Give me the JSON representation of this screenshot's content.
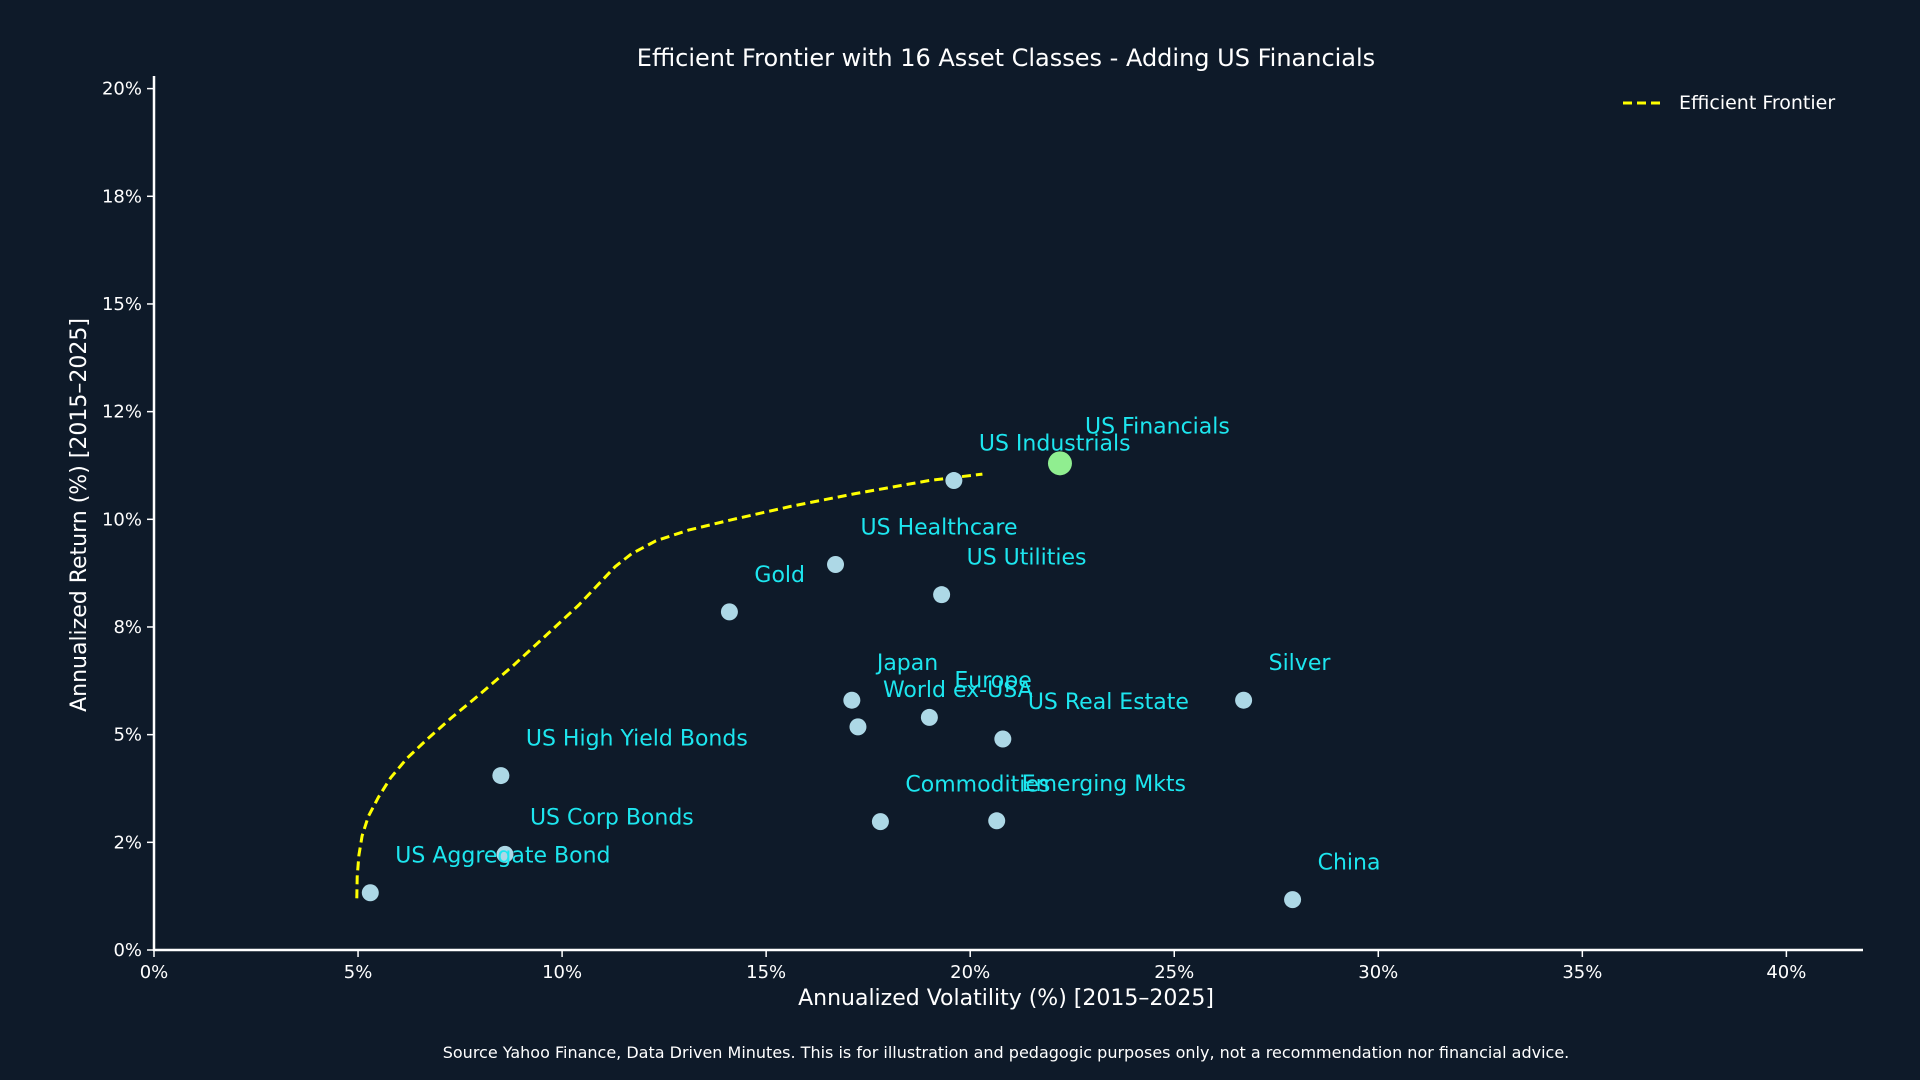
{
  "chart_data": {
    "type": "scatter",
    "title": "Efficient Frontier with 16 Asset Classes - Adding US Financials",
    "xlabel": "Annualized Volatility (%) [2015–2025]",
    "ylabel": "Annualized Return (%) [2015–2025]",
    "xlim": [
      0,
      42
    ],
    "ylim": [
      0,
      20.2
    ],
    "x_ticks": [
      0,
      5,
      10,
      15,
      20,
      25,
      30,
      35,
      40
    ],
    "x_tick_labels": [
      "0%",
      "5%",
      "10%",
      "15%",
      "20%",
      "25%",
      "30%",
      "35%",
      "40%"
    ],
    "y_ticks": [
      0,
      2.5,
      5,
      7.5,
      10,
      12.5,
      15,
      17.5,
      20
    ],
    "y_tick_labels": [
      "0%",
      "2%",
      "5%",
      "8%",
      "10%",
      "12%",
      "15%",
      "18%",
      "20%"
    ],
    "grid": false,
    "legend": {
      "placement": "top-right",
      "entries": [
        "Efficient Frontier"
      ]
    },
    "colors": {
      "background": "#0e1a29",
      "point": "#add8e6",
      "highlight": "#90ee90",
      "label": "#1de6ef",
      "frontier": "#ffff00",
      "axis": "#ffffff"
    },
    "points": [
      {
        "name": "US Aggregate Bond",
        "x": 5.3,
        "y": 1.33
      },
      {
        "name": "US Corp Bonds",
        "x": 8.6,
        "y": 2.22
      },
      {
        "name": "US High Yield Bonds",
        "x": 8.5,
        "y": 4.05
      },
      {
        "name": "Gold",
        "x": 14.1,
        "y": 7.85
      },
      {
        "name": "US Healthcare",
        "x": 16.7,
        "y": 8.95
      },
      {
        "name": "US Utilities",
        "x": 19.3,
        "y": 8.25
      },
      {
        "name": "US Industrials",
        "x": 19.6,
        "y": 10.9
      },
      {
        "name": "US Financials",
        "x": 22.2,
        "y": 11.3,
        "highlight": true
      },
      {
        "name": "Japan",
        "x": 17.1,
        "y": 5.8
      },
      {
        "name": "World ex-USA",
        "x": 17.25,
        "y": 5.18
      },
      {
        "name": "Europe",
        "x": 19.0,
        "y": 5.4
      },
      {
        "name": "US Real Estate",
        "x": 20.8,
        "y": 4.9
      },
      {
        "name": "Silver",
        "x": 26.7,
        "y": 5.8
      },
      {
        "name": "Commodities",
        "x": 17.8,
        "y": 2.98
      },
      {
        "name": "Emerging Mkts",
        "x": 20.65,
        "y": 3.0
      },
      {
        "name": "China",
        "x": 27.9,
        "y": 1.17
      }
    ],
    "frontier": {
      "name": "Efficient Frontier",
      "x": [
        4.97,
        4.98,
        5.02,
        5.1,
        5.25,
        5.5,
        5.8,
        6.2,
        6.7,
        7.3,
        8.0,
        8.8,
        9.6,
        10.4,
        11.0,
        11.3,
        11.7,
        12.3,
        13.1,
        14.2,
        15.6,
        17.2,
        19.0,
        20.3
      ],
      "y": [
        1.2,
        1.7,
        2.2,
        2.65,
        3.1,
        3.55,
        4.0,
        4.45,
        4.9,
        5.4,
        5.95,
        6.6,
        7.3,
        8.0,
        8.6,
        8.9,
        9.2,
        9.5,
        9.75,
        10.0,
        10.3,
        10.6,
        10.9,
        11.05
      ]
    }
  },
  "source_note": "Source Yahoo Finance, Data Driven Minutes. This is for illustration and pedagogic purposes only, not a recommendation nor financial advice."
}
